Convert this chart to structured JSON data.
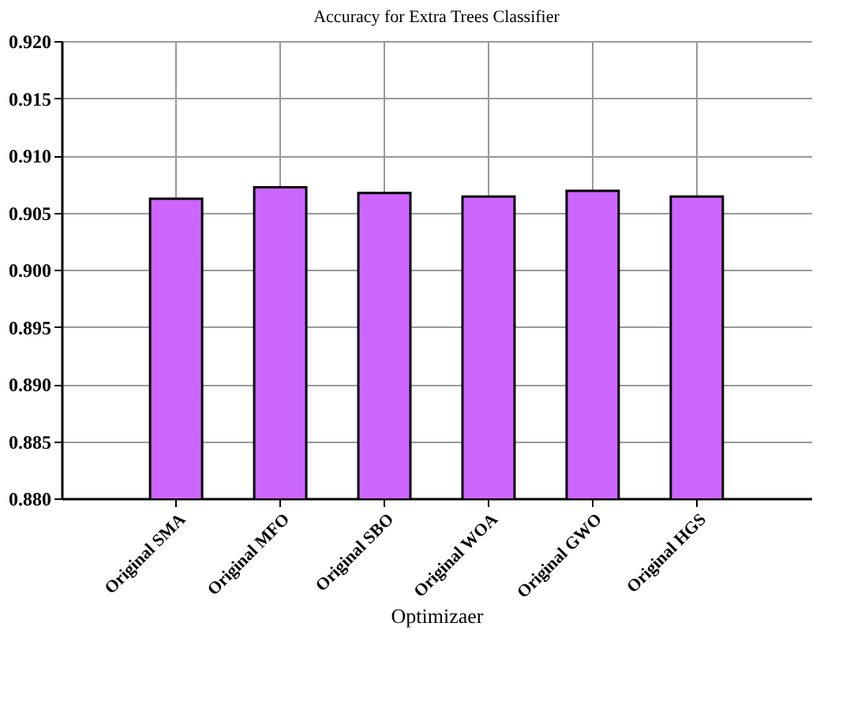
{
  "chart_data": {
    "type": "bar",
    "title": "Accuracy for Extra Trees Classifier",
    "xlabel": "Optimizaer",
    "categories": [
      "Original SMA",
      "Original MFO",
      "Original SBO",
      "Original WOA",
      "Original GWO",
      "Original HGS"
    ],
    "values": [
      0.9062,
      0.9072,
      0.9067,
      0.9064,
      0.9069,
      0.9064
    ],
    "color": "#cc66ff",
    "ylim": [
      0.88,
      0.92
    ],
    "yticks": [
      {
        "value": 0.88,
        "label": "0.880"
      },
      {
        "value": 0.885,
        "label": "0.885"
      },
      {
        "value": 0.89,
        "label": "0.890"
      },
      {
        "value": 0.895,
        "label": "0.895"
      },
      {
        "value": 0.9,
        "label": "0.900"
      },
      {
        "value": 0.905,
        "label": "0.905"
      },
      {
        "value": 0.91,
        "label": "0.910"
      },
      {
        "value": 0.915,
        "label": "0.915"
      },
      {
        "value": 0.92,
        "label": "0.920"
      }
    ],
    "grid": true
  }
}
